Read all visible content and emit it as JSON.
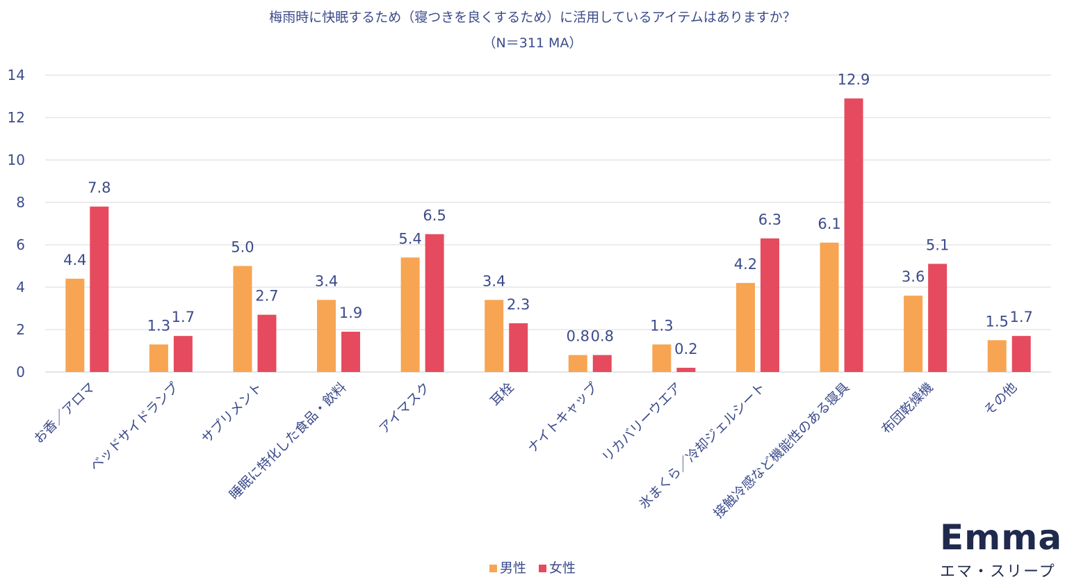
{
  "chart_data": {
    "type": "bar",
    "title": "梅雨時に快眠するため（寝つきを良くするため）に活用しているアイテムはありますか？",
    "subtitle": "（N＝311 MA）",
    "categories": [
      "お香／アロマ",
      "ベッドサイドランプ",
      "サプリメント",
      "睡眠に特化した食品・飲料",
      "アイマスク",
      "耳栓",
      "ナイトキャップ",
      "リカバリーウエア",
      "氷まくら／冷却ジェルシート",
      "接触冷感など機能性のある寝具",
      "布団乾燥機",
      "その他"
    ],
    "series": [
      {
        "name": "男性",
        "color": "#f7a552",
        "values": [
          4.4,
          1.3,
          5.0,
          3.4,
          5.4,
          3.4,
          0.8,
          1.3,
          4.2,
          6.1,
          3.6,
          1.5
        ],
        "labels": [
          "4.4",
          "1.3",
          "5.0",
          "3.4",
          "5.4",
          "3.4",
          "0.8",
          "1.3",
          "4.2",
          "6.1",
          "3.6",
          "1.5"
        ]
      },
      {
        "name": "女性",
        "color": "#e64a5e",
        "values": [
          7.8,
          1.7,
          2.7,
          1.9,
          6.5,
          2.3,
          0.8,
          0.2,
          6.3,
          12.9,
          5.1,
          1.7
        ],
        "labels": [
          "7.8",
          "1.7",
          "2.7",
          "1.9",
          "6.5",
          "2.3",
          "0.8",
          "0.2",
          "6.3",
          "12.9",
          "5.1",
          "1.7"
        ]
      }
    ],
    "yticks": [
      "0",
      "2",
      "4",
      "6",
      "8",
      "10",
      "12",
      "14"
    ],
    "ylim": [
      0,
      14
    ],
    "grid": true,
    "legend": "bottom-center"
  },
  "brand": {
    "logo_word": "Emma",
    "logo_sub": "エマ・スリープ"
  }
}
